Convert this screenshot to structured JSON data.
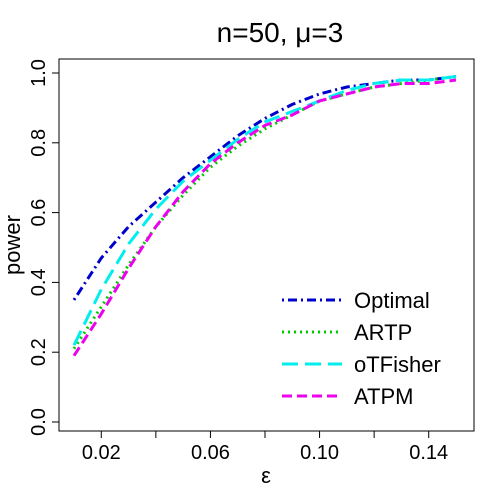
{
  "chart_data": {
    "type": "line",
    "title": "n=50, μ=3",
    "xlabel": "ε",
    "ylabel": "power",
    "xlim": [
      0.01,
      0.15
    ],
    "ylim": [
      0.0,
      1.0
    ],
    "x_ticks": [
      0.02,
      0.04,
      0.06,
      0.08,
      0.1,
      0.12,
      0.14
    ],
    "x_tick_labels": [
      "0.02",
      "0.06",
      "0.10",
      "0.14"
    ],
    "x_labeled_ticks": [
      0.02,
      0.06,
      0.1,
      0.14
    ],
    "y_ticks": [
      0.0,
      0.2,
      0.4,
      0.6,
      0.8,
      1.0
    ],
    "y_tick_labels": [
      "0.0",
      "0.2",
      "0.4",
      "0.6",
      "0.8",
      "1.0"
    ],
    "grid": false,
    "legend_position": "bottom-right",
    "x": [
      0.01,
      0.02,
      0.03,
      0.04,
      0.05,
      0.06,
      0.07,
      0.08,
      0.09,
      0.1,
      0.11,
      0.12,
      0.13,
      0.14,
      0.15
    ],
    "series": [
      {
        "name": "Optimal",
        "color": "#0000CD",
        "dash": "dotdash",
        "values": [
          0.35,
          0.47,
          0.56,
          0.63,
          0.7,
          0.76,
          0.82,
          0.87,
          0.91,
          0.94,
          0.96,
          0.97,
          0.98,
          0.98,
          0.99
        ]
      },
      {
        "name": "ARTP",
        "color": "#00CD00",
        "dash": "dotted",
        "values": [
          0.21,
          0.33,
          0.45,
          0.56,
          0.65,
          0.73,
          0.79,
          0.84,
          0.88,
          0.92,
          0.94,
          0.96,
          0.97,
          0.98,
          0.99
        ]
      },
      {
        "name": "oTFisher",
        "color": "#00EEEE",
        "dash": "longdash",
        "values": [
          0.22,
          0.38,
          0.51,
          0.61,
          0.69,
          0.75,
          0.81,
          0.86,
          0.89,
          0.92,
          0.95,
          0.97,
          0.98,
          0.98,
          0.99
        ]
      },
      {
        "name": "ATPM",
        "color": "#EE00EE",
        "dash": "dashed",
        "values": [
          0.19,
          0.31,
          0.44,
          0.56,
          0.66,
          0.74,
          0.8,
          0.85,
          0.88,
          0.92,
          0.94,
          0.96,
          0.97,
          0.97,
          0.98
        ]
      }
    ]
  }
}
